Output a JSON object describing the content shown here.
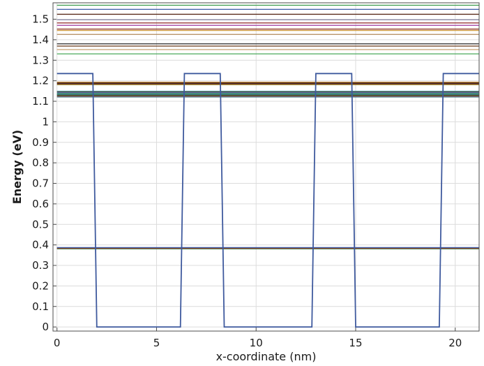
{
  "chart_data": {
    "type": "line",
    "title": "",
    "xlabel": "x-coordinate (nm)",
    "ylabel": "Energy (eV)",
    "xlim": [
      -0.2,
      21.2
    ],
    "ylim": [
      -0.02,
      1.58
    ],
    "grid": true,
    "legend": "none",
    "x_ticks": [
      0,
      5,
      10,
      15,
      20
    ],
    "x_tick_labels": [
      "0",
      "5",
      "10",
      "15",
      "20"
    ],
    "y_ticks": [
      0,
      0.1,
      0.2,
      0.3,
      0.4,
      0.5,
      0.6,
      0.7,
      0.8,
      0.9,
      1,
      1.1,
      1.2,
      1.3,
      1.4,
      1.5
    ],
    "y_tick_labels": [
      "0",
      "0.1",
      "0.2",
      "0.3",
      "0.4",
      "0.5",
      "0.6",
      "0.7",
      "0.8",
      "0.9",
      "1",
      "1.1",
      "1.2",
      "1.3",
      "1.4",
      "1.5"
    ],
    "potential": {
      "color": "#3f5a9e",
      "x": [
        0,
        1.8,
        2.0,
        6.2,
        6.4,
        8.2,
        8.4,
        12.8,
        13.0,
        14.8,
        15.0,
        19.2,
        19.4,
        21.2
      ],
      "y": [
        1.235,
        1.235,
        0,
        0,
        1.235,
        1.235,
        0,
        0,
        1.235,
        1.235,
        0,
        0,
        1.235,
        1.235
      ]
    },
    "levels": [
      {
        "energy": 0.381,
        "color": "#2e9a4a"
      },
      {
        "energy": 0.383,
        "color": "#6a1a1a"
      },
      {
        "energy": 0.385,
        "color": "#c0552a"
      },
      {
        "energy": 0.387,
        "color": "#3b5fa8"
      },
      {
        "energy": 1.121,
        "color": "#2a8a7a"
      },
      {
        "energy": 1.124,
        "color": "#9a3a8a"
      },
      {
        "energy": 1.127,
        "color": "#6a7a2a"
      },
      {
        "energy": 1.131,
        "color": "#1a1a1a"
      },
      {
        "energy": 1.134,
        "color": "#5aa0c8"
      },
      {
        "energy": 1.137,
        "color": "#2e8a4a"
      },
      {
        "energy": 1.142,
        "color": "#3a6ab0"
      },
      {
        "energy": 1.146,
        "color": "#a04a2a"
      },
      {
        "energy": 1.149,
        "color": "#2a8a9a"
      },
      {
        "energy": 1.181,
        "color": "#9a8a2a"
      },
      {
        "energy": 1.185,
        "color": "#7a2a2a"
      },
      {
        "energy": 1.189,
        "color": "#1a1a1a"
      },
      {
        "energy": 1.193,
        "color": "#c07a2a"
      },
      {
        "energy": 1.331,
        "color": "#4aaa5a"
      },
      {
        "energy": 1.352,
        "color": "#c8a070"
      },
      {
        "energy": 1.369,
        "color": "#6a3a1a"
      },
      {
        "energy": 1.38,
        "color": "#2a2a2a"
      },
      {
        "energy": 1.426,
        "color": "#b08a5a"
      },
      {
        "energy": 1.445,
        "color": "#d09a3a"
      },
      {
        "energy": 1.452,
        "color": "#8a2a1a"
      },
      {
        "energy": 1.47,
        "color": "#a84aa8"
      },
      {
        "energy": 1.482,
        "color": "#9a3a3a"
      },
      {
        "energy": 1.497,
        "color": "#8a8aaa"
      },
      {
        "energy": 1.524,
        "color": "#5a2a1a"
      },
      {
        "energy": 1.548,
        "color": "#3a5aa8"
      },
      {
        "energy": 1.568,
        "color": "#3a9a4a"
      }
    ]
  }
}
